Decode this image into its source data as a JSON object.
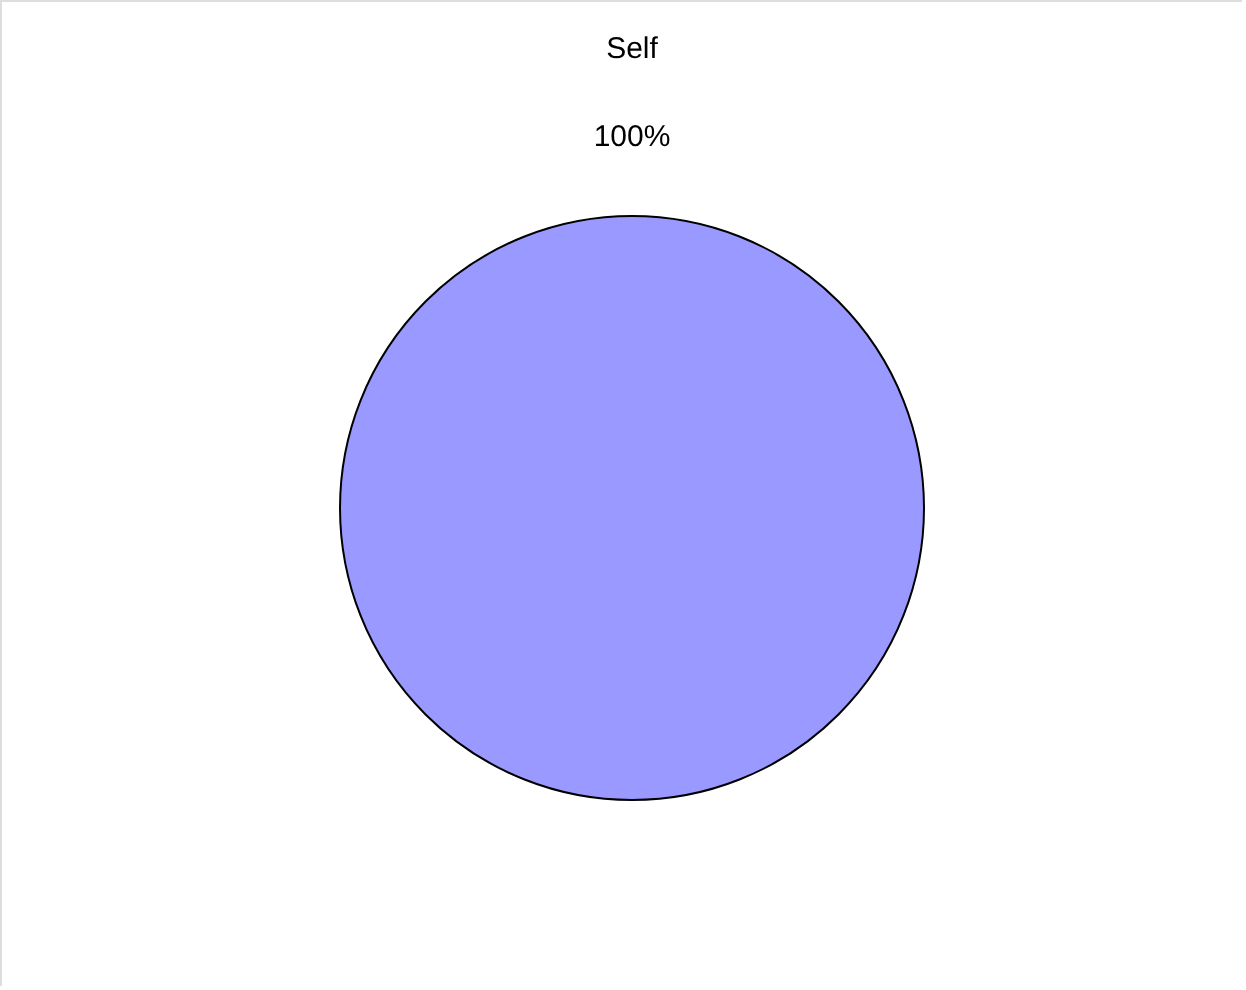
{
  "chart_data": {
    "type": "pie",
    "categories": [
      "Self"
    ],
    "values": [
      100
    ],
    "colors": [
      "#9999ff"
    ],
    "value_labels": [
      "100%"
    ]
  }
}
